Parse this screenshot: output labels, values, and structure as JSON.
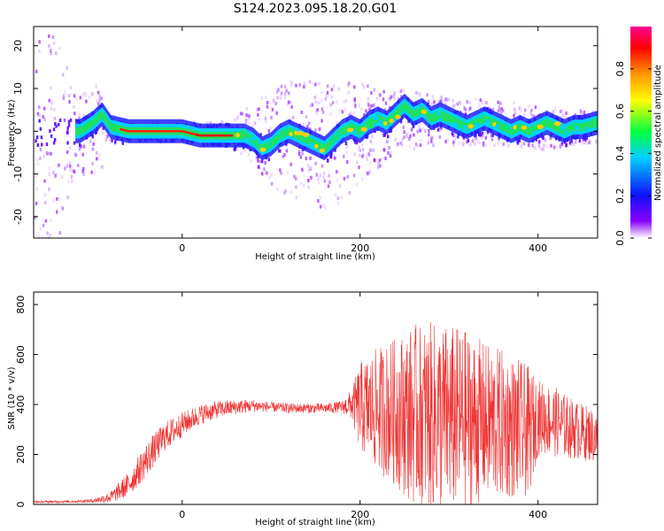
{
  "figure_title": "S124.2023.095.18.20.G01",
  "chart_data": [
    {
      "type": "heatmap",
      "title": "",
      "xlabel": "Height of straight line (km)",
      "ylabel": "Frequency (Hz)",
      "xlim": [
        -167,
        467
      ],
      "ylim": [
        -25,
        24.5
      ],
      "xticks": [
        0,
        200,
        400
      ],
      "yticks": [
        -20,
        -10,
        0,
        10,
        20
      ],
      "colorbar": {
        "label": "Normalized spectral amplitude",
        "range": [
          0,
          1
        ],
        "ticks": [
          "0.0",
          "0.2",
          "0.4",
          "0.6",
          "0.8"
        ],
        "colors": [
          "#ffffff",
          "#8a00ff",
          "#1010ff",
          "#00d0ff",
          "#00ff40",
          "#ffff00",
          "#ff9000",
          "#ff0000",
          "#ff0090"
        ]
      },
      "ridge": {
        "x": [
          -115,
          -100,
          -90,
          -80,
          -60,
          -40,
          -20,
          0,
          20,
          40,
          57,
          60,
          70,
          80,
          90,
          100,
          110,
          120,
          130,
          140,
          150,
          160,
          170,
          180,
          190,
          200,
          210,
          220,
          230,
          240,
          250,
          260,
          270,
          280,
          290,
          300,
          310,
          320,
          330,
          340,
          350,
          360,
          370,
          380,
          390,
          400,
          410,
          420,
          430,
          440,
          450,
          467
        ],
        "y": [
          0,
          2,
          4,
          1,
          0,
          0,
          0,
          0,
          -1,
          -1,
          -1,
          -1,
          -1,
          -2,
          -4,
          -3,
          -1,
          0,
          -1,
          -2,
          -3,
          -4,
          -2,
          0,
          1,
          0,
          2,
          3,
          2,
          4,
          6,
          4,
          5,
          3,
          4,
          3,
          2,
          1,
          2,
          3,
          2,
          1,
          0,
          1,
          0,
          1,
          2,
          1,
          0,
          1,
          1,
          2
        ]
      },
      "scatter_envelope": {
        "x": [
          -167,
          -140,
          -120,
          -100,
          -80,
          -60,
          0,
          57,
          80,
          100,
          120,
          140,
          160,
          180,
          200,
          220,
          250,
          300,
          350,
          400,
          467
        ],
        "upper": [
          24,
          24,
          8,
          12,
          3,
          2,
          2,
          3,
          8,
          10,
          12,
          14,
          13,
          12,
          12,
          10,
          10,
          8,
          8,
          6,
          5
        ],
        "lower": [
          -25,
          -25,
          -8,
          -12,
          -3,
          -2,
          -2,
          -4,
          -8,
          -12,
          -16,
          -18,
          -20,
          -16,
          -12,
          -8,
          -4,
          -3,
          -3,
          -4,
          -2
        ]
      }
    },
    {
      "type": "line",
      "title": "",
      "xlabel": "Height of straight line (km)",
      "ylabel": "SNR (10 * v/v)",
      "xlim": [
        -167,
        467
      ],
      "ylim": [
        0,
        850
      ],
      "xticks": [
        0,
        200,
        400
      ],
      "yticks": [
        0,
        200,
        400,
        600,
        800
      ],
      "series": [
        {
          "color": "#ef3333",
          "x": [
            -167,
            -120,
            -100,
            -80,
            -60,
            -40,
            -20,
            0,
            20,
            40,
            60,
            80,
            100,
            120,
            140,
            160,
            180,
            190,
            200,
            220,
            240,
            260,
            280,
            300,
            320,
            340,
            360,
            380,
            390,
            400,
            420,
            440,
            460,
            467
          ],
          "mean": [
            10,
            12,
            15,
            30,
            80,
            180,
            270,
            320,
            360,
            380,
            390,
            395,
            390,
            385,
            385,
            385,
            390,
            400,
            390,
            380,
            370,
            360,
            350,
            345,
            340,
            330,
            320,
            300,
            290,
            350,
            330,
            300,
            280,
            260
          ],
          "spread": [
            5,
            5,
            8,
            25,
            50,
            70,
            60,
            50,
            40,
            35,
            30,
            25,
            20,
            20,
            20,
            20,
            25,
            60,
            180,
            250,
            300,
            360,
            380,
            380,
            360,
            320,
            300,
            280,
            260,
            150,
            140,
            120,
            110,
            100
          ]
        }
      ]
    }
  ]
}
